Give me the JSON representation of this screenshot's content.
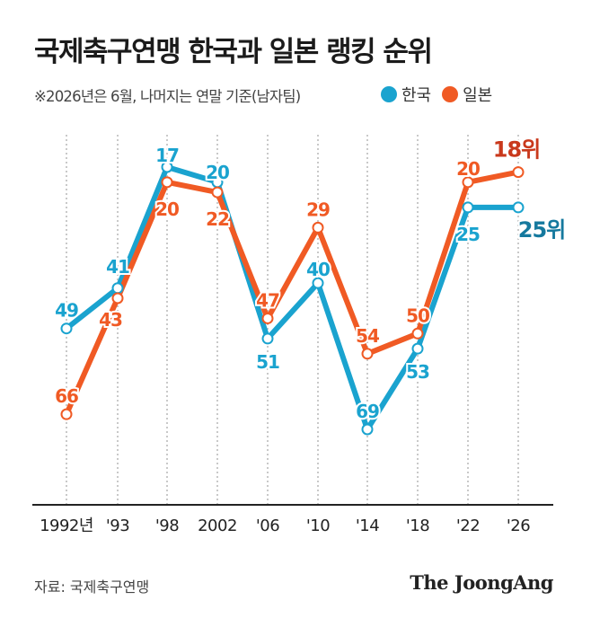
{
  "header": {
    "title": "국제축구연맹 한국과 일본 랭킹 순위",
    "subtitle": "※2026년은 6월, 나머지는 연말 기준(남자팀)"
  },
  "colors": {
    "korea": "#1aa3cf",
    "japan": "#f05a24",
    "korea_end": "#15799e",
    "japan_end": "#c9391c"
  },
  "legend": [
    {
      "name": "한국",
      "color": "#1aa3cf"
    },
    {
      "name": "일본",
      "color": "#f05a24"
    }
  ],
  "chart_data": {
    "type": "line",
    "categories": [
      "1992년",
      "'93",
      "'98",
      "2002",
      "'06",
      "'10",
      "'14",
      "'18",
      "'22",
      "'26"
    ],
    "series": [
      {
        "name": "한국",
        "values": [
          49,
          41,
          17,
          20,
          51,
          40,
          69,
          53,
          25,
          25
        ],
        "labels": [
          "49",
          "41",
          "17",
          "20",
          "51",
          "40",
          "69",
          "53",
          "25",
          "25위"
        ]
      },
      {
        "name": "일본",
        "values": [
          66,
          43,
          20,
          22,
          47,
          29,
          54,
          50,
          20,
          18
        ],
        "labels": [
          "66",
          "43",
          "20",
          "22",
          "47",
          "29",
          "54",
          "50",
          "20",
          "18위"
        ]
      }
    ],
    "y_axis": "inverted ranking, not printed",
    "grid": "vertical dotted lines at each category"
  },
  "footer": {
    "source": "자료: 국제축구연맹",
    "brand": "The JoongAng"
  }
}
